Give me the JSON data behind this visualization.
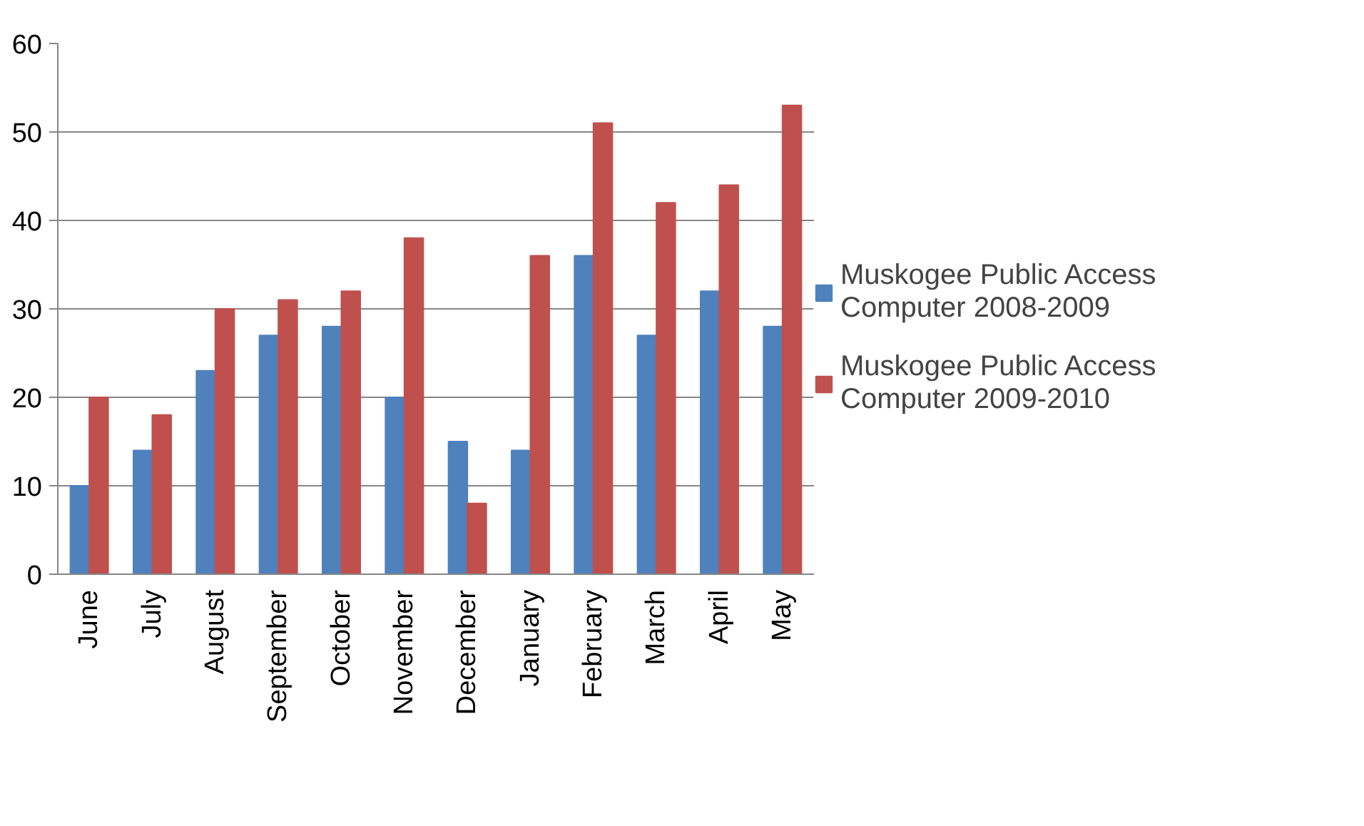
{
  "chart_data": {
    "type": "bar",
    "categories": [
      "June",
      "July",
      "August",
      "September",
      "October",
      "November",
      "December",
      "January",
      "February",
      "March",
      "April",
      "May"
    ],
    "series": [
      {
        "name": "Muskogee Public Access Computer 2008-2009",
        "color": "#4f81bd",
        "values": [
          10,
          14,
          23,
          27,
          28,
          20,
          15,
          14,
          36,
          27,
          32,
          28
        ]
      },
      {
        "name": "Muskogee Public Access Computer 2009-2010",
        "color": "#c0504d",
        "values": [
          20,
          18,
          30,
          31,
          32,
          38,
          8,
          36,
          51,
          42,
          44,
          53
        ]
      }
    ],
    "ylim": [
      0,
      60
    ],
    "yticks": [
      0,
      10,
      20,
      30,
      40,
      50,
      60
    ],
    "grid": "y",
    "legend": "right"
  }
}
